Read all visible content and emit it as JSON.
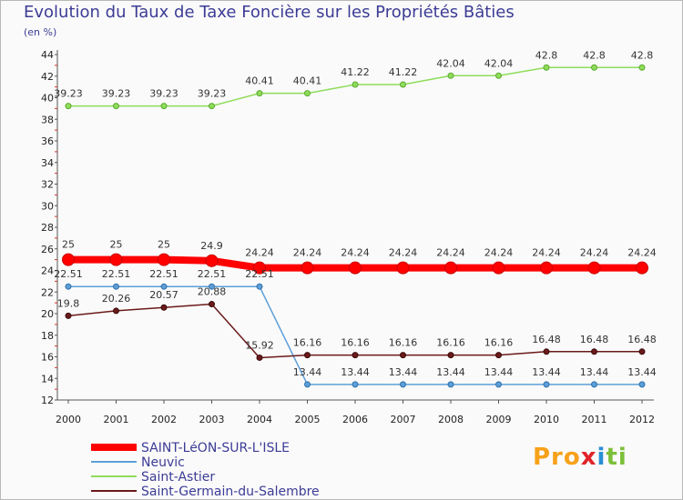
{
  "chart_data": {
    "type": "line",
    "title": "Evolution du Taux de Taxe Foncière sur les Propriétés Bâties",
    "subtitle": "(en %)",
    "xlabel": "",
    "ylabel": "",
    "ylim": [
      12,
      44
    ],
    "yticks": [
      12,
      14,
      16,
      18,
      20,
      22,
      24,
      26,
      28,
      30,
      32,
      34,
      36,
      38,
      40,
      42,
      44
    ],
    "categories": [
      "2000",
      "2001",
      "2002",
      "2003",
      "2004",
      "2005",
      "2006",
      "2007",
      "2008",
      "2009",
      "2010",
      "2011",
      "2012"
    ],
    "series": [
      {
        "name": "SAINT-LéON-SUR-L'ISLE",
        "color": "#ff0000",
        "values": [
          25,
          25,
          25,
          24.9,
          24.24,
          24.24,
          24.24,
          24.24,
          24.24,
          24.24,
          24.24,
          24.24,
          24.24
        ],
        "labels": [
          "25",
          "25",
          "25",
          "24.9",
          "24.24",
          "24.24",
          "24.24",
          "24.24",
          "24.24",
          "24.24",
          "24.24",
          "24.24",
          "24.24"
        ]
      },
      {
        "name": "Neuvic",
        "color": "#5c9fd8",
        "values": [
          22.51,
          22.51,
          22.51,
          22.51,
          22.51,
          13.44,
          13.44,
          13.44,
          13.44,
          13.44,
          13.44,
          13.44,
          13.44
        ],
        "labels": [
          "22.51",
          "22.51",
          "22.51",
          "22.51",
          "22.51",
          "13.44",
          "13.44",
          "13.44",
          "13.44",
          "13.44",
          "13.44",
          "13.44",
          "13.44"
        ]
      },
      {
        "name": "Saint-Astier",
        "color": "#8fdc5a",
        "values": [
          39.23,
          39.23,
          39.23,
          39.23,
          40.41,
          40.41,
          41.22,
          41.22,
          42.04,
          42.04,
          42.8,
          42.8,
          42.8
        ],
        "labels": [
          "39.23",
          "39.23",
          "39.23",
          "39.23",
          "40.41",
          "40.41",
          "41.22",
          "41.22",
          "42.04",
          "42.04",
          "42.8",
          "42.8",
          "42.8"
        ]
      },
      {
        "name": "Saint-Germain-du-Salembre",
        "color": "#6b1a1a",
        "values": [
          19.8,
          20.26,
          20.57,
          20.88,
          15.92,
          16.16,
          16.16,
          16.16,
          16.16,
          16.16,
          16.48,
          16.48,
          16.48
        ],
        "labels": [
          "19.8",
          "20.26",
          "20.57",
          "20.88",
          "15.92",
          "16.16",
          "16.16",
          "16.16",
          "16.16",
          "16.16",
          "16.48",
          "16.48",
          "16.48"
        ]
      }
    ],
    "legend_position": "bottom-left",
    "grid": false
  },
  "branding": {
    "logo_text": "Proxiti",
    "logo_parts": [
      "Pro",
      "x",
      "i",
      "ti"
    ]
  }
}
